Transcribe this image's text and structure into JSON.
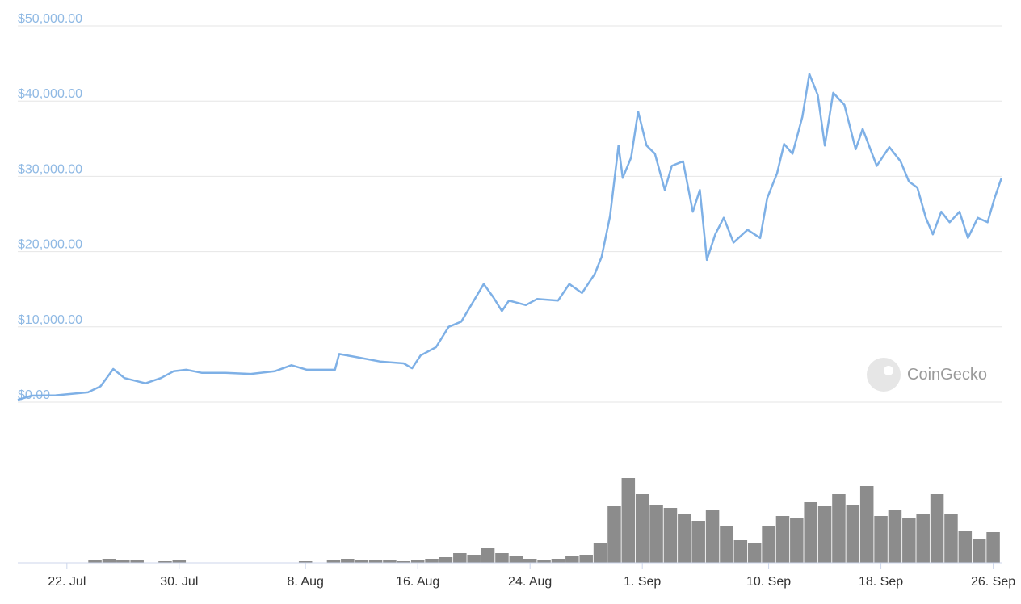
{
  "chart_data": {
    "type": "line",
    "watermark": "CoinGecko",
    "xlim": [
      -3.5,
      66.6
    ],
    "xticks": [
      {
        "value": 0,
        "label": "22. Jul"
      },
      {
        "value": 8,
        "label": "30. Jul"
      },
      {
        "value": 17,
        "label": "8. Aug"
      },
      {
        "value": 25,
        "label": "16. Aug"
      },
      {
        "value": 33,
        "label": "24. Aug"
      },
      {
        "value": 41,
        "label": "1. Sep"
      },
      {
        "value": 50,
        "label": "10. Sep"
      },
      {
        "value": 58,
        "label": "18. Sep"
      },
      {
        "value": 66,
        "label": "26. Sep"
      }
    ],
    "ylim": [
      0,
      50000
    ],
    "yticks": [
      {
        "value": 0,
        "label": "$0.00"
      },
      {
        "value": 10000,
        "label": "$10,000.00"
      },
      {
        "value": 20000,
        "label": "$20,000.00"
      },
      {
        "value": 30000,
        "label": "$30,000.00"
      },
      {
        "value": 40000,
        "label": "$40,000.00"
      },
      {
        "value": 50000,
        "label": "$50,000.00"
      }
    ],
    "grid": true,
    "series": [
      {
        "color": "#7eb0e6",
        "x": [
          -3.5,
          -2.5,
          -0.8,
          1.5,
          2.4,
          3.3,
          4.1,
          5.6,
          6.7,
          7.6,
          8.5,
          9.6,
          11.3,
          13.1,
          14.8,
          16.0,
          17.1,
          19.1,
          19.4,
          20.6,
          22.3,
          24.0,
          24.6,
          25.2,
          26.3,
          27.2,
          28.1,
          28.9,
          29.7,
          30.4,
          31.0,
          31.5,
          32.7,
          33.5,
          35.0,
          35.8,
          36.7,
          37.6,
          38.1,
          38.7,
          39.3,
          39.6,
          40.2,
          40.7,
          41.3,
          41.9,
          42.6,
          43.1,
          43.9,
          44.6,
          45.1,
          45.6,
          46.2,
          46.8,
          47.5,
          48.5,
          49.4,
          49.9,
          50.6,
          51.1,
          51.7,
          52.4,
          52.9,
          53.5,
          54.0,
          54.6,
          55.4,
          56.2,
          56.7,
          57.7,
          58.6,
          59.4,
          60.0,
          60.6,
          61.2,
          61.7,
          62.3,
          62.9,
          63.6,
          64.2,
          64.9,
          65.6,
          66.1,
          66.5,
          66.6
        ],
        "values": [
          300,
          860,
          900,
          1300,
          2100,
          4400,
          3200,
          2500,
          3200,
          4100,
          4300,
          3900,
          3900,
          3750,
          4100,
          4900,
          4300,
          4300,
          6400,
          6000,
          5400,
          5150,
          4500,
          6200,
          7300,
          10000,
          10700,
          13200,
          15700,
          13900,
          12100,
          13500,
          12900,
          13700,
          13500,
          15700,
          14500,
          17000,
          19300,
          24700,
          34100,
          29800,
          32500,
          38600,
          34100,
          33000,
          28200,
          31400,
          32000,
          25300,
          28200,
          18900,
          22300,
          24500,
          21200,
          22900,
          21800,
          27100,
          30400,
          34300,
          33000,
          37900,
          43600,
          40800,
          34100,
          41100,
          39500,
          33600,
          36300,
          31400,
          33900,
          32000,
          29300,
          28500,
          24500,
          22300,
          25300,
          23900,
          25300,
          21800,
          24500,
          23900,
          27100,
          29300,
          29800
        ]
      }
    ],
    "volume": {
      "color": "#8c8c8c",
      "y2lim": [
        0,
        120
      ],
      "x": [
        2,
        3,
        4,
        5,
        7,
        8,
        17,
        19,
        20,
        21,
        22,
        23,
        24,
        25,
        26,
        27,
        28,
        29,
        30,
        31,
        32,
        33,
        34,
        35,
        36,
        37,
        38,
        39,
        40,
        41,
        42,
        43,
        44,
        45,
        46,
        47,
        48,
        49,
        50,
        51,
        52,
        53,
        54,
        55,
        56,
        57,
        58,
        59,
        60,
        61,
        62,
        63,
        64,
        65,
        66
      ],
      "values": [
        4,
        5,
        4,
        3,
        2,
        3,
        2,
        4,
        5,
        4,
        4,
        3,
        2,
        3,
        5,
        7,
        12,
        10,
        18,
        12,
        8,
        5,
        4,
        5,
        8,
        10,
        25,
        70,
        105,
        85,
        72,
        68,
        60,
        52,
        65,
        45,
        28,
        25,
        45,
        58,
        55,
        75,
        70,
        85,
        72,
        95,
        58,
        65,
        55,
        60,
        85,
        60,
        40,
        30,
        38
      ]
    }
  }
}
